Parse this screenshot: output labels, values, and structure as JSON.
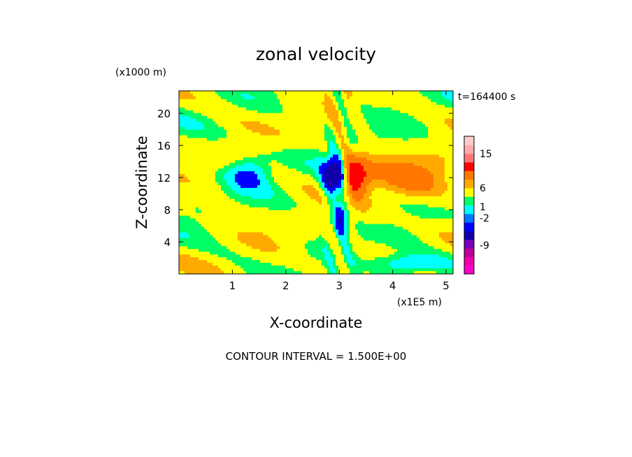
{
  "chart_data": {
    "type": "heatmap",
    "title": "zonal velocity",
    "time_label": "t=164400 s",
    "xlabel": "X-coordinate",
    "ylabel": "Z-coordinate",
    "x_unit": "(x1E5 m)",
    "y_unit": "(x1000 m)",
    "xlim": [
      0,
      5.13
    ],
    "ylim": [
      0,
      22.8
    ],
    "x_ticks": [
      1,
      2,
      3,
      4,
      5
    ],
    "y_ticks": [
      4,
      8,
      12,
      16,
      20
    ],
    "x_tick_labels": [
      "1",
      "2",
      "3",
      "4",
      "5"
    ],
    "y_tick_labels": [
      "4",
      "8",
      "12",
      "16",
      "20"
    ],
    "footer": "CONTOUR INTERVAL = 1.500E+00",
    "contour_interval": 1.5,
    "colorbar": {
      "labels": [
        "15",
        "6",
        "1",
        "-2",
        "-9"
      ],
      "label_values": [
        15,
        6,
        1,
        -2,
        -9
      ],
      "bands": [
        {
          "color": "#ff00cc"
        },
        {
          "color": "#ee00aa"
        },
        {
          "color": "#bb0099"
        },
        {
          "color": "#7700bb"
        },
        {
          "color": "#1100aa"
        },
        {
          "color": "#0000ff"
        },
        {
          "color": "#0077ff"
        },
        {
          "color": "#00ffff"
        },
        {
          "color": "#00ff66"
        },
        {
          "color": "#ffff00"
        },
        {
          "color": "#ffaa00"
        },
        {
          "color": "#ff7700"
        },
        {
          "color": "#ff0000"
        },
        {
          "color": "#ff7777"
        },
        {
          "color": "#ffaaaa"
        },
        {
          "color": "#ffcccc"
        }
      ]
    },
    "field_colors": {
      "strong_neg": "#1100aa",
      "neg": "#0000ff",
      "weak_neg": "#00ffff",
      "near_zero": "#00ff66",
      "zero": "#ffff00",
      "weak_pos": "#ffaa00",
      "pos": "#ff7700",
      "strong_pos": "#ff0000"
    }
  }
}
